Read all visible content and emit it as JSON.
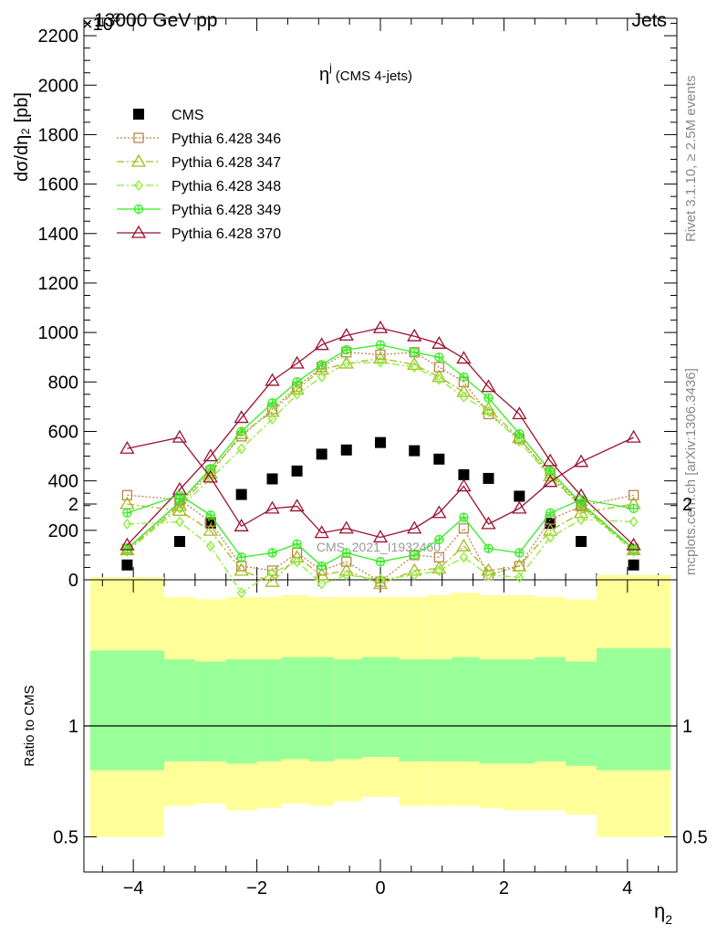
{
  "header": {
    "left": "13000 GeV pp",
    "right": "Jets",
    "exponent": "×10",
    "exponent_power": "3"
  },
  "side_labels": {
    "rivet": "Rivet 3.1.10, ≥ 2.5M events",
    "mcplots": "mcplots.cern.ch [arXiv:1306.3436]"
  },
  "watermark": "CMS_2021_I1932460",
  "chart_data": [
    {
      "type": "scatter",
      "panel": "main",
      "title": "η^j (CMS 4-jets)",
      "title_main": "η",
      "title_sup": "j",
      "title_rest": "(CMS 4-jets)",
      "ylabel": "dσ/dη₂ [pb]",
      "xlabel": "η₂",
      "ylim": [
        0,
        2300
      ],
      "xlim": [
        -4.8,
        4.8
      ],
      "x_ticks": [
        -4,
        -2,
        0,
        2,
        4
      ],
      "x_tick_labels": [
        "−4",
        "−2",
        "0",
        "2",
        "4"
      ],
      "y_ticks": [
        0,
        200,
        400,
        600,
        800,
        1000,
        1200,
        1400,
        1600,
        1800,
        2000,
        2200
      ],
      "y_tick_labels": [
        "0",
        "200",
        "400",
        "600",
        "800",
        "1000",
        "1200",
        "1400",
        "1600",
        "1800",
        "2000",
        "2200"
      ],
      "legend_position": "top-left",
      "x": [
        -4.1,
        -3.25,
        -2.75,
        -2.25,
        -1.75,
        -1.35,
        -0.95,
        -0.55,
        0,
        0.55,
        0.95,
        1.35,
        1.75,
        2.25,
        2.75,
        3.25,
        4.1
      ],
      "series": [
        {
          "name": "CMS",
          "color": "#000000",
          "style": "points",
          "values": [
            60,
            155,
            230,
            345,
            408,
            440,
            508,
            525,
            555,
            522,
            488,
            425,
            410,
            338,
            228,
            155,
            60
          ]
        },
        {
          "name": "Pythia 6.428 346",
          "color": "#b8864b",
          "style": "dotted",
          "marker": "square",
          "values": [
            125,
            310,
            440,
            580,
            690,
            780,
            860,
            920,
            910,
            920,
            860,
            800,
            670,
            570,
            430,
            305,
            125
          ]
        },
        {
          "name": "Pythia 6.428 347",
          "color": "#a8b820",
          "style": "dashdot",
          "marker": "triangle",
          "values": [
            120,
            300,
            430,
            590,
            680,
            770,
            850,
            875,
            895,
            870,
            820,
            760,
            690,
            575,
            420,
            300,
            120
          ]
        },
        {
          "name": "Pythia 6.428 348",
          "color": "#88ee30",
          "style": "dashdot",
          "marker": "diamond",
          "values": [
            115,
            290,
            410,
            530,
            650,
            750,
            820,
            875,
            880,
            860,
            810,
            740,
            680,
            560,
            415,
            295,
            115
          ]
        },
        {
          "name": "Pythia 6.428 349",
          "color": "#33ee22",
          "style": "solid",
          "marker": "cross",
          "values": [
            125,
            315,
            450,
            600,
            715,
            800,
            870,
            930,
            950,
            920,
            900,
            820,
            735,
            590,
            440,
            310,
            125
          ]
        },
        {
          "name": "Pythia 6.428 370",
          "color": "#9b1030",
          "style": "solid",
          "marker": "triangle",
          "values": [
            140,
            365,
            500,
            655,
            805,
            875,
            950,
            988,
            1018,
            985,
            955,
            895,
            780,
            670,
            480,
            340,
            140
          ]
        }
      ]
    },
    {
      "type": "scatter",
      "panel": "ratio",
      "ylabel": "Ratio to CMS",
      "ylim": [
        0.35,
        2.3
      ],
      "y_ticks": [
        0.5,
        1,
        2
      ],
      "y_tick_labels": [
        "0.5",
        "1",
        "2"
      ],
      "bins": [
        -4.7,
        -3.5,
        -3.0,
        -2.5,
        -2.0,
        -1.6,
        -1.15,
        -0.75,
        -0.3,
        0.3,
        0.75,
        1.15,
        1.6,
        2.0,
        2.5,
        3.0,
        3.5,
        4.7
      ],
      "band_total": {
        "color": "#ffff99",
        "upper": [
          1.67,
          1.58,
          1.57,
          1.58,
          1.58,
          1.59,
          1.58,
          1.58,
          1.58,
          1.58,
          1.59,
          1.6,
          1.59,
          1.59,
          1.58,
          1.57,
          1.68
        ],
        "lower": [
          0.5,
          0.64,
          0.65,
          0.62,
          0.63,
          0.65,
          0.64,
          0.66,
          0.68,
          0.64,
          0.64,
          0.64,
          0.63,
          0.62,
          0.62,
          0.6,
          0.5
        ]
      },
      "band_stat": {
        "color": "#99ff99",
        "upper": [
          1.34,
          1.3,
          1.29,
          1.3,
          1.3,
          1.31,
          1.31,
          1.3,
          1.31,
          1.3,
          1.3,
          1.31,
          1.3,
          1.3,
          1.31,
          1.29,
          1.35
        ],
        "lower": [
          0.8,
          0.84,
          0.84,
          0.83,
          0.84,
          0.85,
          0.84,
          0.85,
          0.86,
          0.84,
          0.84,
          0.84,
          0.83,
          0.83,
          0.84,
          0.82,
          0.8
        ]
      },
      "x": [
        -4.1,
        -3.25,
        -2.75,
        -2.25,
        -1.75,
        -1.35,
        -0.95,
        -0.55,
        0,
        0.55,
        0.95,
        1.35,
        1.75,
        2.25,
        2.75,
        3.25,
        4.1
      ],
      "series": [
        {
          "name": "Pythia 6.428 346",
          "color": "#b8864b",
          "style": "dotted",
          "marker": "square",
          "values": [
            2.04,
            2.02,
            1.92,
            1.72,
            1.7,
            1.78,
            1.7,
            1.74,
            1.65,
            1.77,
            1.76,
            1.89,
            1.68,
            1.72,
            1.93,
            1.99,
            2.04
          ]
        },
        {
          "name": "Pythia 6.428 347",
          "color": "#a8b820",
          "style": "dashdot",
          "marker": "triangle",
          "values": [
            2.0,
            1.97,
            1.88,
            1.7,
            1.65,
            1.76,
            1.68,
            1.7,
            1.64,
            1.7,
            1.71,
            1.81,
            1.7,
            1.72,
            1.88,
            1.96,
            2.0
          ]
        },
        {
          "name": "Pythia 6.428 348",
          "color": "#88ee30",
          "style": "dashdot",
          "marker": "diamond",
          "values": [
            1.91,
            1.92,
            1.81,
            1.6,
            1.69,
            1.74,
            1.64,
            1.68,
            1.66,
            1.68,
            1.7,
            1.76,
            1.68,
            1.67,
            1.85,
            1.93,
            1.92
          ]
        },
        {
          "name": "Pythia 6.428 349",
          "color": "#33ee22",
          "style": "solid",
          "marker": "cross",
          "values": [
            1.96,
            2.04,
            1.95,
            1.76,
            1.78,
            1.82,
            1.72,
            1.78,
            1.74,
            1.77,
            1.84,
            1.94,
            1.8,
            1.78,
            1.96,
            2.02,
            1.98
          ]
        },
        {
          "name": "Pythia 6.428 370",
          "color": "#9b1030",
          "style": "solid",
          "marker": "triangle",
          "values": [
            2.25,
            2.3,
            2.12,
            1.9,
            1.98,
            1.99,
            1.87,
            1.89,
            1.85,
            1.89,
            1.96,
            2.08,
            1.91,
            1.98,
            2.1,
            2.19,
            2.3
          ]
        }
      ]
    }
  ]
}
